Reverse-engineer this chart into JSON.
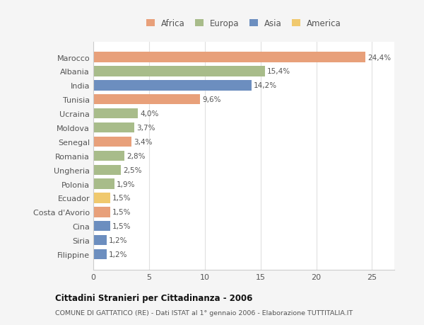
{
  "categories": [
    "Filippine",
    "Siria",
    "Cina",
    "Costa d'Avorio",
    "Ecuador",
    "Polonia",
    "Ungheria",
    "Romania",
    "Senegal",
    "Moldova",
    "Ucraina",
    "Tunisia",
    "India",
    "Albania",
    "Marocco"
  ],
  "values": [
    1.2,
    1.2,
    1.5,
    1.5,
    1.5,
    1.9,
    2.5,
    2.8,
    3.4,
    3.7,
    4.0,
    9.6,
    14.2,
    15.4,
    24.4
  ],
  "labels": [
    "1,2%",
    "1,2%",
    "1,5%",
    "1,5%",
    "1,5%",
    "1,9%",
    "2,5%",
    "2,8%",
    "3,4%",
    "3,7%",
    "4,0%",
    "9,6%",
    "14,2%",
    "15,4%",
    "24,4%"
  ],
  "colors": [
    "#6c8ebf",
    "#6c8ebf",
    "#6c8ebf",
    "#e8a07a",
    "#f0c96e",
    "#a8bc8a",
    "#a8bc8a",
    "#a8bc8a",
    "#e8a07a",
    "#a8bc8a",
    "#a8bc8a",
    "#e8a07a",
    "#6c8ebf",
    "#a8bc8a",
    "#e8a07a"
  ],
  "continent_colors": {
    "Africa": "#e8a07a",
    "Europa": "#a8bc8a",
    "Asia": "#6c8ebf",
    "America": "#f0c96e"
  },
  "title1": "Cittadini Stranieri per Cittadinanza - 2006",
  "title2": "COMUNE DI GATTATICO (RE) - Dati ISTAT al 1° gennaio 2006 - Elaborazione TUTTITALIA.IT",
  "xlim": [
    0,
    27
  ],
  "xticks": [
    0,
    5,
    10,
    15,
    20,
    25
  ],
  "background_color": "#f5f5f5",
  "plot_bg_color": "#ffffff",
  "bar_height": 0.72,
  "grid_color": "#e0e0e0"
}
